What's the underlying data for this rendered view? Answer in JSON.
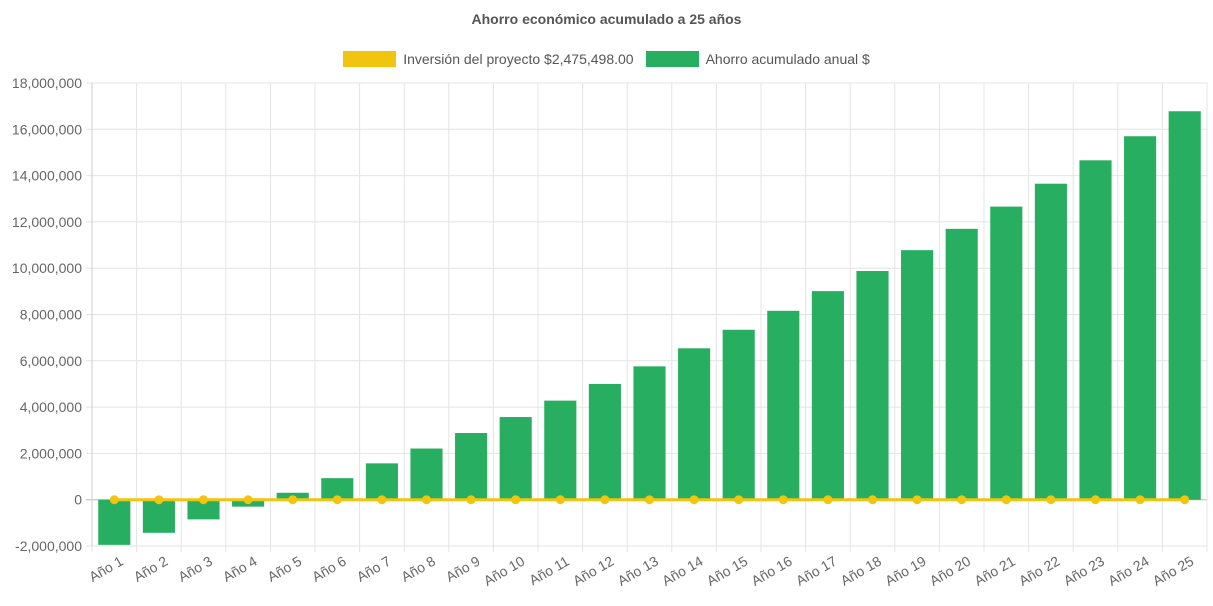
{
  "chart_data": {
    "type": "bar",
    "title": "Ahorro económico acumulado a 25 años",
    "categories": [
      "Año 1",
      "Año 2",
      "Año 3",
      "Año 4",
      "Año 5",
      "Año 6",
      "Año 7",
      "Año 8",
      "Año 9",
      "Año 10",
      "Año 11",
      "Año 12",
      "Año 13",
      "Año 14",
      "Año 15",
      "Año 16",
      "Año 17",
      "Año 18",
      "Año 19",
      "Año 20",
      "Año 21",
      "Año 22",
      "Año 23",
      "Año 24",
      "Año 25"
    ],
    "series": [
      {
        "name": "Inversión del proyecto $2,475,498.00",
        "type": "line",
        "color": "#f1c40f",
        "values": [
          0,
          0,
          0,
          0,
          0,
          0,
          0,
          0,
          0,
          0,
          0,
          0,
          0,
          0,
          0,
          0,
          0,
          0,
          0,
          0,
          0,
          0,
          0,
          0,
          0
        ]
      },
      {
        "name": "Ahorro acumulado anual $",
        "type": "bar",
        "color": "#27ae60",
        "values": [
          -1950000,
          -1430000,
          -850000,
          -300000,
          300000,
          930000,
          1570000,
          2210000,
          2880000,
          3570000,
          4280000,
          5000000,
          5760000,
          6540000,
          7340000,
          8160000,
          9010000,
          9880000,
          10780000,
          11700000,
          12660000,
          13650000,
          14660000,
          15700000,
          16780000
        ]
      }
    ],
    "ylim": [
      -2000000,
      18000000
    ],
    "yticks": [
      -2000000,
      0,
      2000000,
      4000000,
      6000000,
      8000000,
      10000000,
      12000000,
      14000000,
      16000000,
      18000000
    ],
    "ytick_labels": [
      "-2,000,000",
      "0",
      "2,000,000",
      "4,000,000",
      "6,000,000",
      "8,000,000",
      "10,000,000",
      "12,000,000",
      "14,000,000",
      "16,000,000",
      "18,000,000"
    ],
    "grid": true,
    "legend_position": "top"
  }
}
